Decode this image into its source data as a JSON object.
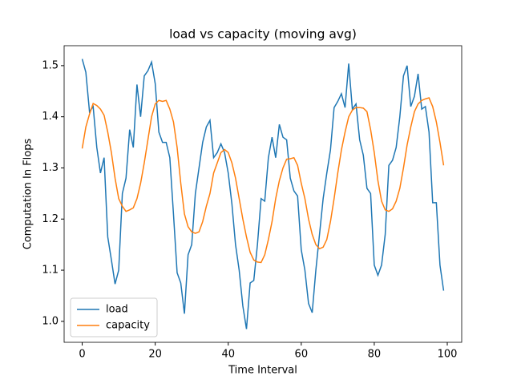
{
  "chart_data": {
    "type": "line",
    "title": "load vs capacity (moving avg)",
    "xlabel": "Time Interval",
    "ylabel": "Computation In Flops",
    "x": [
      0,
      1,
      2,
      3,
      4,
      5,
      6,
      7,
      8,
      9,
      10,
      11,
      12,
      13,
      14,
      15,
      16,
      17,
      18,
      19,
      20,
      21,
      22,
      23,
      24,
      25,
      26,
      27,
      28,
      29,
      30,
      31,
      32,
      33,
      34,
      35,
      36,
      37,
      38,
      39,
      40,
      41,
      42,
      43,
      44,
      45,
      46,
      47,
      48,
      49,
      50,
      51,
      52,
      53,
      54,
      55,
      56,
      57,
      58,
      59,
      60,
      61,
      62,
      63,
      64,
      65,
      66,
      67,
      68,
      69,
      70,
      71,
      72,
      73,
      74,
      75,
      76,
      77,
      78,
      79,
      80,
      81,
      82,
      83,
      84,
      85,
      86,
      87,
      88,
      89,
      90,
      91,
      92,
      93,
      94,
      95,
      96,
      97,
      98,
      99
    ],
    "series": [
      {
        "name": "load",
        "color": "#1f77b4",
        "values": [
          1.513,
          1.487,
          1.41,
          1.42,
          1.34,
          1.29,
          1.32,
          1.165,
          1.12,
          1.073,
          1.1,
          1.25,
          1.28,
          1.375,
          1.34,
          1.463,
          1.4,
          1.48,
          1.49,
          1.507,
          1.465,
          1.37,
          1.35,
          1.35,
          1.32,
          1.21,
          1.095,
          1.075,
          1.015,
          1.13,
          1.15,
          1.25,
          1.3,
          1.35,
          1.38,
          1.393,
          1.32,
          1.33,
          1.347,
          1.33,
          1.29,
          1.23,
          1.15,
          1.1,
          1.03,
          0.985,
          1.075,
          1.08,
          1.15,
          1.24,
          1.235,
          1.32,
          1.36,
          1.32,
          1.385,
          1.36,
          1.355,
          1.28,
          1.255,
          1.245,
          1.14,
          1.1,
          1.035,
          1.017,
          1.1,
          1.17,
          1.24,
          1.29,
          1.335,
          1.418,
          1.43,
          1.445,
          1.418,
          1.504,
          1.415,
          1.425,
          1.355,
          1.325,
          1.26,
          1.25,
          1.11,
          1.09,
          1.11,
          1.17,
          1.305,
          1.315,
          1.34,
          1.4,
          1.48,
          1.5,
          1.42,
          1.44,
          1.484,
          1.415,
          1.42,
          1.37,
          1.232,
          1.232,
          1.11,
          1.06
        ]
      },
      {
        "name": "capacity",
        "color": "#ff7f0e",
        "values": [
          1.338,
          1.38,
          1.405,
          1.426,
          1.422,
          1.415,
          1.403,
          1.37,
          1.33,
          1.28,
          1.24,
          1.225,
          1.215,
          1.218,
          1.222,
          1.24,
          1.27,
          1.31,
          1.355,
          1.4,
          1.425,
          1.432,
          1.43,
          1.432,
          1.415,
          1.39,
          1.34,
          1.27,
          1.21,
          1.185,
          1.175,
          1.172,
          1.175,
          1.195,
          1.225,
          1.25,
          1.29,
          1.31,
          1.33,
          1.336,
          1.33,
          1.31,
          1.28,
          1.24,
          1.2,
          1.165,
          1.135,
          1.12,
          1.116,
          1.115,
          1.13,
          1.16,
          1.195,
          1.24,
          1.275,
          1.3,
          1.317,
          1.318,
          1.32,
          1.305,
          1.27,
          1.24,
          1.2,
          1.17,
          1.15,
          1.142,
          1.145,
          1.16,
          1.195,
          1.24,
          1.29,
          1.335,
          1.37,
          1.4,
          1.413,
          1.418,
          1.418,
          1.417,
          1.41,
          1.375,
          1.33,
          1.275,
          1.235,
          1.218,
          1.215,
          1.22,
          1.235,
          1.26,
          1.3,
          1.345,
          1.38,
          1.41,
          1.425,
          1.432,
          1.435,
          1.437,
          1.42,
          1.39,
          1.35,
          1.305
        ]
      }
    ],
    "xlim": [
      -4.95,
      103.95
    ],
    "ylim": [
      0.959,
      1.539
    ],
    "xticks": [
      0,
      20,
      40,
      60,
      80,
      100
    ],
    "yticks": [
      {
        "value": 1,
        "label": "1.0"
      },
      1.1,
      1.2,
      1.3,
      1.4,
      1.5
    ],
    "legend": "lower left"
  }
}
